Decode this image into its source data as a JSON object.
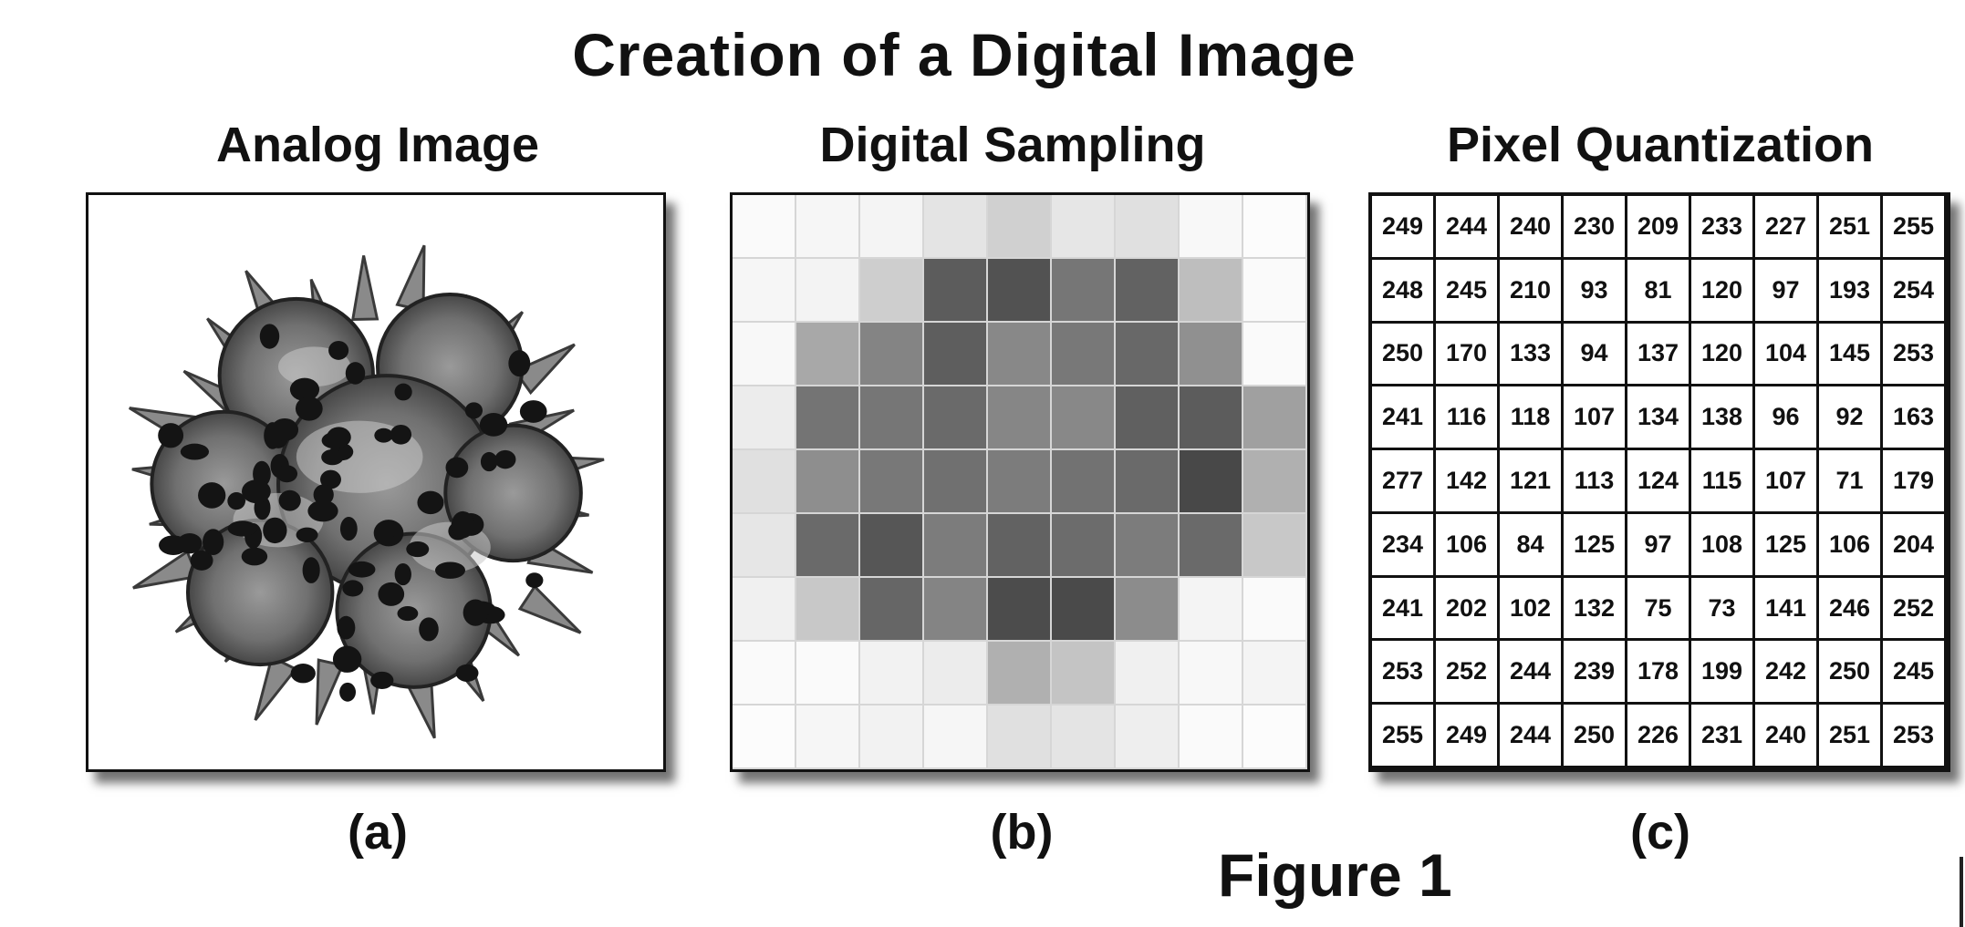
{
  "title": "Creation of a Digital Image",
  "figure_label": "Figure 1",
  "panels": {
    "a": {
      "title": "Analog Image",
      "label": "(a)"
    },
    "b": {
      "title": "Digital Sampling",
      "label": "(b)"
    },
    "c": {
      "title": "Pixel Quantization",
      "label": "(c)"
    }
  },
  "analog_icon": "spiky-pollen-grain-image",
  "sampling_gray": [
    [
      250,
      246,
      244,
      228,
      208,
      230,
      224,
      248,
      252
    ],
    [
      246,
      243,
      206,
      92,
      82,
      118,
      98,
      190,
      250
    ],
    [
      248,
      168,
      132,
      94,
      136,
      120,
      104,
      144,
      250
    ],
    [
      236,
      116,
      118,
      106,
      134,
      136,
      96,
      92,
      160
    ],
    [
      224,
      142,
      120,
      112,
      124,
      114,
      106,
      72,
      176
    ],
    [
      230,
      106,
      86,
      124,
      98,
      108,
      124,
      106,
      200
    ],
    [
      240,
      200,
      102,
      132,
      76,
      74,
      140,
      244,
      250
    ],
    [
      250,
      250,
      242,
      236,
      176,
      196,
      240,
      248,
      244
    ],
    [
      252,
      246,
      242,
      246,
      224,
      228,
      238,
      250,
      252
    ]
  ],
  "quantization_values": [
    [
      "249",
      "244",
      "240",
      "230",
      "209",
      "233",
      "227",
      "251",
      "255"
    ],
    [
      "248",
      "245",
      "210",
      "93",
      "81",
      "120",
      "97",
      "193",
      "254"
    ],
    [
      "250",
      "170",
      "133",
      "94",
      "137",
      "120",
      "104",
      "145",
      "253"
    ],
    [
      "241",
      "116",
      "118",
      "107",
      "134",
      "138",
      "96",
      "92",
      "163"
    ],
    [
      "277",
      "142",
      "121",
      "113",
      "124",
      "115",
      "107",
      "71",
      "179"
    ],
    [
      "234",
      "106",
      "84",
      "125",
      "97",
      "108",
      "125",
      "106",
      "204"
    ],
    [
      "241",
      "202",
      "102",
      "132",
      "75",
      "73",
      "141",
      "246",
      "252"
    ],
    [
      "253",
      "252",
      "244",
      "239",
      "178",
      "199",
      "242",
      "250",
      "245"
    ],
    [
      "255",
      "249",
      "244",
      "250",
      "226",
      "231",
      "240",
      "251",
      "253"
    ]
  ]
}
